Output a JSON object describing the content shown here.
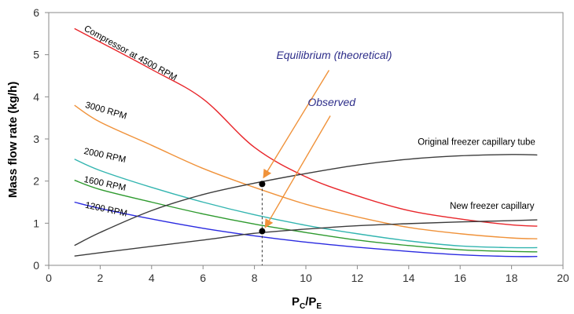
{
  "chart_data": {
    "type": "line",
    "xlabel_main": "P",
    "xlabel_sub1": "C",
    "xlabel_sep": "/P",
    "xlabel_sub2": "E",
    "ylabel": "Mass flow rate (kg/h)",
    "xlim": [
      0,
      20
    ],
    "ylim": [
      0,
      6
    ],
    "x_ticks": [
      "0",
      "2",
      "4",
      "6",
      "8",
      "10",
      "12",
      "14",
      "16",
      "18",
      "20"
    ],
    "y_ticks": [
      "0",
      "1",
      "2",
      "3",
      "4",
      "5",
      "6"
    ],
    "grid": false,
    "series": [
      {
        "name": "Compressor at 4500 RPM",
        "color": "#e8262b",
        "x": [
          1,
          2,
          4,
          6,
          8,
          10,
          12,
          14,
          16,
          18,
          19
        ],
        "y": [
          5.62,
          5.3,
          4.65,
          3.95,
          2.8,
          2.1,
          1.65,
          1.3,
          1.1,
          0.96,
          0.93
        ]
      },
      {
        "name": "3000 RPM",
        "color": "#f0923a",
        "x": [
          1,
          2,
          4,
          6,
          8,
          10,
          12,
          14,
          16,
          18,
          19
        ],
        "y": [
          3.8,
          3.4,
          2.85,
          2.3,
          1.85,
          1.45,
          1.15,
          0.9,
          0.75,
          0.65,
          0.63
        ]
      },
      {
        "name": "2000 RPM",
        "color": "#33b5b0",
        "x": [
          1,
          2,
          4,
          6,
          8,
          10,
          12,
          14,
          16,
          18,
          19
        ],
        "y": [
          2.52,
          2.25,
          1.85,
          1.5,
          1.2,
          0.95,
          0.75,
          0.58,
          0.46,
          0.42,
          0.42
        ]
      },
      {
        "name": "1600 RPM",
        "color": "#2e9a2e",
        "x": [
          1,
          2,
          4,
          6,
          8,
          10,
          12,
          14,
          16,
          18,
          19
        ],
        "y": [
          2.02,
          1.8,
          1.5,
          1.22,
          0.98,
          0.78,
          0.6,
          0.47,
          0.37,
          0.33,
          0.32
        ]
      },
      {
        "name": "1200 RPM",
        "color": "#2a2ae0",
        "x": [
          1,
          2,
          4,
          6,
          8,
          10,
          12,
          14,
          16,
          18,
          19
        ],
        "y": [
          1.5,
          1.35,
          1.1,
          0.88,
          0.7,
          0.55,
          0.43,
          0.33,
          0.25,
          0.21,
          0.21
        ]
      },
      {
        "name": "Original freezer capillary tube",
        "color": "#3c3c3c",
        "x": [
          1,
          2,
          4,
          6,
          8,
          10,
          12,
          14,
          16,
          18,
          19
        ],
        "y": [
          0.47,
          0.78,
          1.3,
          1.68,
          1.95,
          2.18,
          2.38,
          2.52,
          2.6,
          2.63,
          2.62
        ]
      },
      {
        "name": "New freezer capillary",
        "color": "#3c3c3c",
        "x": [
          1,
          2,
          4,
          6,
          8,
          10,
          12,
          14,
          16,
          18,
          19
        ],
        "y": [
          0.22,
          0.3,
          0.45,
          0.6,
          0.76,
          0.86,
          0.94,
          0.99,
          1.03,
          1.06,
          1.08
        ]
      }
    ],
    "labels": [
      {
        "series": 0,
        "text": "Compressor at 4500 RPM",
        "x": 1.35,
        "y": 5.58,
        "angle": 29
      },
      {
        "series": 1,
        "text": "3000 RPM",
        "x": 1.4,
        "y": 3.75,
        "angle": 16
      },
      {
        "series": 2,
        "text": "2000 RPM",
        "x": 1.35,
        "y": 2.65,
        "angle": 12
      },
      {
        "series": 3,
        "text": "1600 RPM",
        "x": 1.35,
        "y": 1.98,
        "angle": 12
      },
      {
        "series": 4,
        "text": "1200 RPM",
        "x": 1.4,
        "y": 1.37,
        "angle": 12
      },
      {
        "series": 5,
        "text": "Original freezer capillary tube",
        "x": 14.35,
        "y": 2.86,
        "angle": 0
      },
      {
        "series": 6,
        "text": "New freezer capillary",
        "x": 15.6,
        "y": 1.34,
        "angle": 0
      }
    ],
    "points": [
      {
        "x": 8.3,
        "y": 1.93
      },
      {
        "x": 8.3,
        "y": 0.81
      }
    ],
    "dashed_line": {
      "x": 8.3,
      "y0": 0,
      "y1": 1.93
    },
    "annotations": [
      {
        "text": "Equilibrium (theoretical)",
        "x": 11.1,
        "y": 4.9,
        "arrow_from": [
          10.9,
          4.63
        ],
        "arrow_to": [
          8.35,
          2.08
        ]
      },
      {
        "text": "Observed",
        "x": 11.0,
        "y": 3.78,
        "arrow_from": [
          10.95,
          3.55
        ],
        "arrow_to": [
          8.42,
          0.9
        ]
      }
    ],
    "annotation_arrow_color": "#f0923a"
  }
}
